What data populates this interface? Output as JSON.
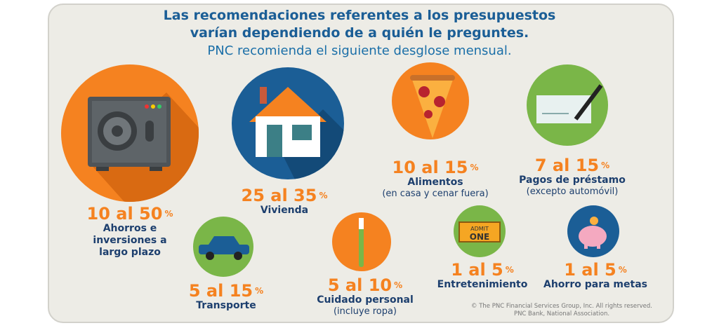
{
  "title": {
    "line1": "Las recomendaciones referentes a los presupuestos",
    "line2": "varían dependiendo de a quién le preguntes.",
    "subtitle": "PNC recomienda el siguiente desglose mensual."
  },
  "colors": {
    "orange": "#f58220",
    "blue": "#1b5e96",
    "green": "#7ab648",
    "navy": "#1d3f6e"
  },
  "categories": [
    {
      "range": "10 al 50",
      "unit": "%",
      "name_lines": [
        "Ahorros e",
        "inversiones a",
        "largo plazo"
      ],
      "icon": "safe-icon"
    },
    {
      "range": "25 al 35",
      "unit": "%",
      "name_lines": [
        "Vivienda"
      ],
      "icon": "house-icon"
    },
    {
      "range": "10 al 15",
      "unit": "%",
      "name_lines": [
        "Alimentos"
      ],
      "sub": "(en casa y cenar fuera)",
      "icon": "pizza-icon"
    },
    {
      "range": "7 al 15",
      "unit": "%",
      "name_lines": [
        "Pagos de préstamo"
      ],
      "sub": "(excepto automóvil)",
      "icon": "check-icon"
    },
    {
      "range": "5 al 15",
      "unit": "%",
      "name_lines": [
        "Transporte"
      ],
      "icon": "car-icon"
    },
    {
      "range": "5 al 10",
      "unit": "%",
      "name_lines": [
        "Cuidado personal"
      ],
      "sub": "(incluye ropa)",
      "icon": "toothbrush-icon"
    },
    {
      "range": "1 al 5",
      "unit": "%",
      "name_lines": [
        "Entretenimiento"
      ],
      "icon": "ticket-icon",
      "ticket_text": [
        "ADMIT",
        "ONE"
      ]
    },
    {
      "range": "1 al 5",
      "unit": "%",
      "name_lines": [
        "Ahorro para metas"
      ],
      "icon": "piggy-bank-icon"
    }
  ],
  "copyright": {
    "line1": "© The PNC Financial Services Group, Inc. All rights reserved.",
    "line2": "PNC Bank, National Association."
  }
}
